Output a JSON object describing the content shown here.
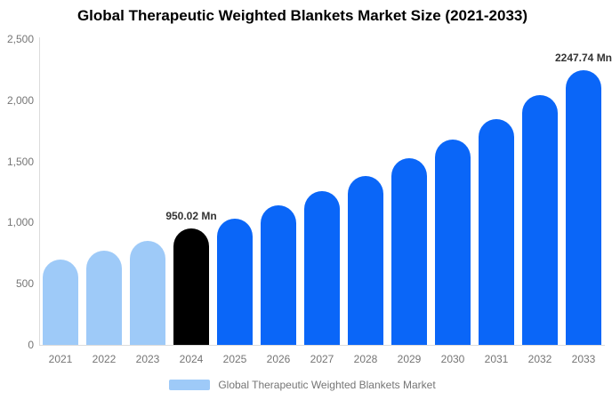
{
  "title": "Global Therapeutic Weighted Blankets Market Size (2021-2033)",
  "legend": {
    "label": "Global Therapeutic Weighted Blankets Market",
    "swatch_color": "#9ECAF8"
  },
  "colors": {
    "historical": "#9ECAF8",
    "highlight": "#000000",
    "forecast": "#0A66F8",
    "axis_line": "#DCDCDC",
    "tick_text": "#757575",
    "data_label": "#333333"
  },
  "y_axis": {
    "ticks": [
      "0",
      "500",
      "1,000",
      "1,500",
      "2,000",
      "2,500"
    ],
    "tick_values": [
      0,
      500,
      1000,
      1500,
      2000,
      2500
    ],
    "min": 0,
    "max": 2500
  },
  "chart_data": {
    "type": "bar",
    "title": "Global Therapeutic Weighted Blankets Market Size (2021-2033)",
    "categories": [
      "2021",
      "2022",
      "2023",
      "2024",
      "2025",
      "2026",
      "2027",
      "2028",
      "2029",
      "2030",
      "2031",
      "2032",
      "2033"
    ],
    "values": [
      700,
      772,
      848,
      950.02,
      1030,
      1142,
      1256,
      1380,
      1523,
      1680,
      1848,
      2040,
      2247.74
    ],
    "values_unit": "Mn",
    "bar_colors": [
      "historical",
      "historical",
      "historical",
      "highlight",
      "forecast",
      "forecast",
      "forecast",
      "forecast",
      "forecast",
      "forecast",
      "forecast",
      "forecast",
      "forecast"
    ],
    "data_labels": {
      "2024": "950.02 Mn",
      "2033": "2247.74 Mn"
    },
    "xlabel": "",
    "ylabel": "",
    "ylim": [
      0,
      2500
    ],
    "grid": false,
    "legend": [
      "Global Therapeutic Weighted Blankets Market"
    ],
    "legend_position": "bottom"
  }
}
